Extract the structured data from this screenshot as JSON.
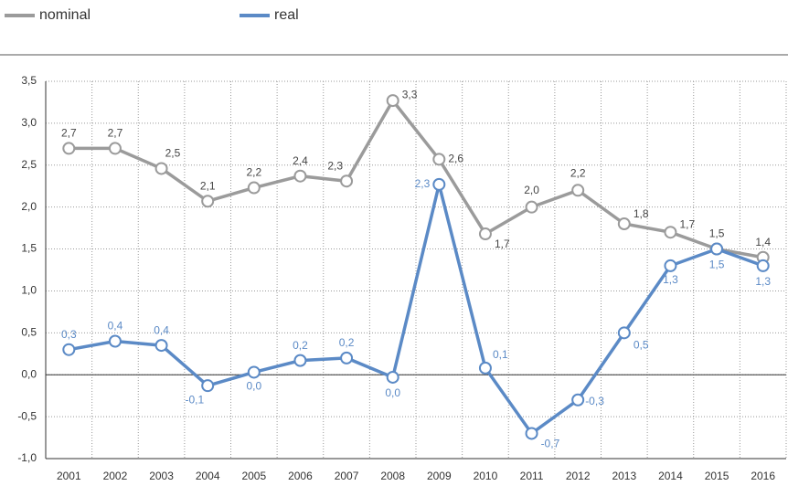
{
  "chart_data": {
    "type": "line",
    "categories": [
      "2001",
      "2002",
      "2003",
      "2004",
      "2005",
      "2006",
      "2007",
      "2008",
      "2009",
      "2010",
      "2011",
      "2012",
      "2013",
      "2014",
      "2015",
      "2016"
    ],
    "series": [
      {
        "name": "nominal",
        "color": "#9b9b9b",
        "values": [
          2.7,
          2.7,
          2.46,
          2.07,
          2.23,
          2.37,
          2.31,
          3.27,
          2.57,
          1.68,
          2.0,
          2.2,
          1.8,
          1.7,
          1.5,
          1.4
        ],
        "value_labels": [
          "2,7",
          "2,7",
          "2,5",
          "2,1",
          "2,2",
          "2,4",
          "2,3",
          "3,3",
          "2,6",
          "1,7",
          "2,0",
          "2,2",
          "1,8",
          "1,7",
          "1,5",
          "1,4"
        ]
      },
      {
        "name": "real",
        "color": "#5b8ac6",
        "values": [
          0.3,
          0.4,
          0.35,
          -0.13,
          0.03,
          0.17,
          0.2,
          -0.03,
          2.27,
          0.08,
          -0.7,
          -0.3,
          0.5,
          1.3,
          1.5,
          1.3
        ],
        "value_labels": [
          "0,3",
          "0,4",
          "0,4",
          "-0,1",
          "0,0",
          "0,2",
          "0,2",
          "0,0",
          "2,3",
          "0,1",
          "-0,7",
          "-0,3",
          "0,5",
          "1,3",
          "1,5",
          "1,3"
        ]
      }
    ],
    "ylim": [
      -1.0,
      3.5
    ],
    "yticks": [
      {
        "value": -1.0,
        "label": "-1,0"
      },
      {
        "value": -0.5,
        "label": "-0,5"
      },
      {
        "value": 0,
        "label": "0,0"
      },
      {
        "value": 0.5,
        "label": "0,5"
      },
      {
        "value": 1.0,
        "label": "1,0"
      },
      {
        "value": 1.5,
        "label": "1,5"
      },
      {
        "value": 2.0,
        "label": "2,0"
      },
      {
        "value": 2.5,
        "label": "2,5"
      },
      {
        "value": 3.0,
        "label": "3,0"
      },
      {
        "value": 3.5,
        "label": "3,5"
      }
    ],
    "grid": true,
    "legend": "top"
  }
}
